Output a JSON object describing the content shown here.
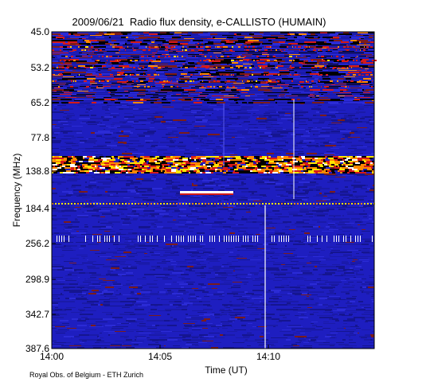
{
  "chart_data": {
    "type": "heatmap",
    "title": "2009/06/21  Radio flux density, e-CALLISTO (HUMAIN)",
    "xlabel": "Time (UT)",
    "ylabel": "Frequency (MHz)",
    "x_ticks": [
      "14:00",
      "14:05",
      "14:10"
    ],
    "y_ticks": [
      "45.0",
      "53.2",
      "65.2",
      "77.8",
      "138.8",
      "184.4",
      "256.2",
      "298.9",
      "342.7",
      "387.6"
    ],
    "colormap": [
      "#000000",
      "#1a1aa8",
      "#2b2bd6",
      "#7a1c1c",
      "#d41a1a",
      "#ff8a00",
      "#ffe400",
      "#ffffff"
    ],
    "background_color": "#1e1ec0",
    "features": [
      {
        "name": "upper-bursty-band",
        "freq_from": "45.0",
        "freq_to": "65.2"
      },
      {
        "name": "mid-bright-band",
        "freq_from": "138.8",
        "freq_to": "138.8"
      },
      {
        "name": "narrow-line-184",
        "freq_from": "184.4",
        "freq_to": "184.4"
      },
      {
        "name": "comb-band-256",
        "freq_from": "256.2",
        "freq_to": "256.2"
      },
      {
        "name": "short-burst-line",
        "time_from": "14:06",
        "time_to": "14:08:30"
      },
      {
        "name": "vertical-spike",
        "time": "14:09:50"
      },
      {
        "name": "vertical-spike-2",
        "time": "14:11:10"
      }
    ]
  },
  "credit": "Royal Obs. of Belgium - ETH Zurich"
}
